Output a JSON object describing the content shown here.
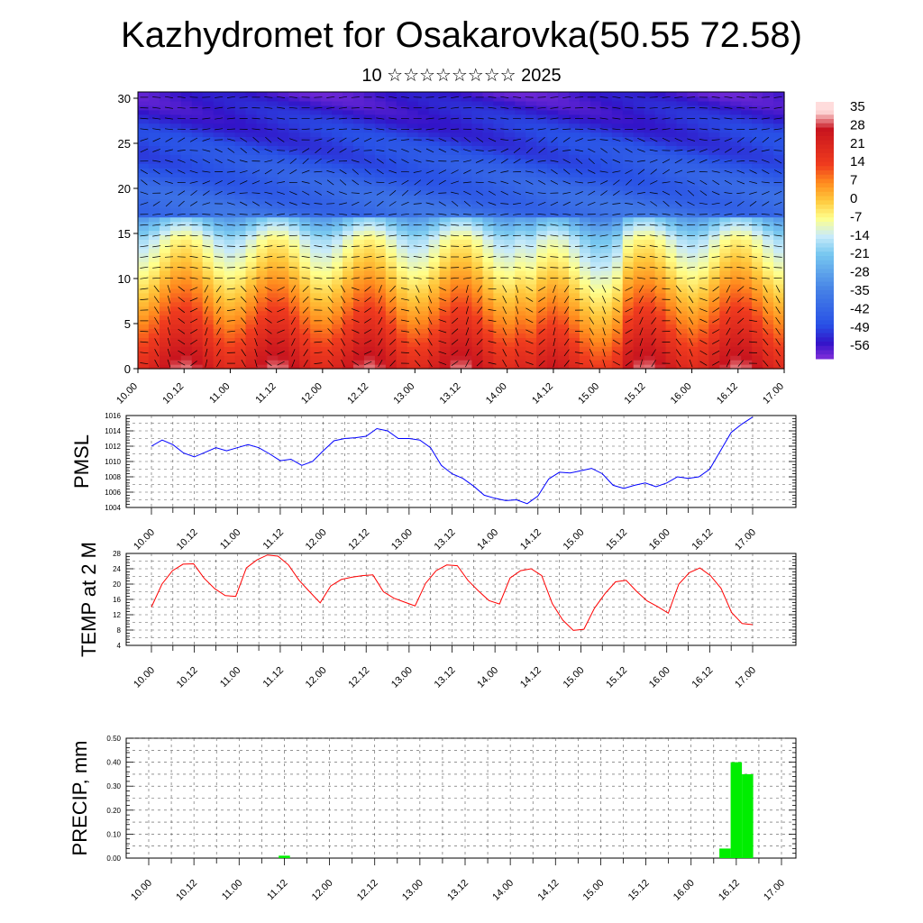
{
  "page": {
    "title": "Kazhydromet for Osakarovka(50.55 72.58)",
    "subtitle": "10 ☆☆☆☆☆☆☆☆ 2025"
  },
  "chart_data": [
    {
      "type": "heatmap",
      "name": "upper-air-section",
      "x_ticks": [
        "10.00",
        "10.12",
        "11.00",
        "11.12",
        "12.00",
        "12.12",
        "13.00",
        "13.12",
        "14.00",
        "14.12",
        "15.00",
        "15.12",
        "16.00",
        "16.12",
        "17.00"
      ],
      "y_ticks": [
        0,
        5,
        10,
        15,
        20,
        25,
        30
      ],
      "ylim": [
        0,
        30.7
      ],
      "colorbar_labels": [
        "35",
        "28",
        "21",
        "14",
        "7",
        "0",
        "-7",
        "-14",
        "-21",
        "-28",
        "-35",
        "-42",
        "-49",
        "-56"
      ],
      "colors": {
        "hot": "#c8141e",
        "warm": "#ff8c1e",
        "neutral": "#ffff8c",
        "cool": "#78c8f0",
        "cold": "#2850e6",
        "coldest": "#3214c8"
      },
      "vectors": "wind-barbs"
    },
    {
      "type": "line",
      "name": "pmsl",
      "ylabel": "PMSL",
      "x_ticks": [
        "10.00",
        "10.12",
        "11.00",
        "11.12",
        "12.00",
        "12.12",
        "13.00",
        "13.12",
        "14.00",
        "14.12",
        "15.00",
        "15.12",
        "16.00",
        "16.12",
        "17.00"
      ],
      "ylim": [
        1004,
        1016
      ],
      "y_ticks": [
        1004,
        1006,
        1008,
        1010,
        1012,
        1014,
        1016
      ],
      "color": "#0000ff",
      "values": [
        1012.0,
        1012.8,
        1012.2,
        1011.1,
        1010.6,
        1011.2,
        1011.8,
        1011.4,
        1011.8,
        1012.2,
        1011.8,
        1011.0,
        1010.1,
        1010.3,
        1009.5,
        1010.0,
        1011.4,
        1012.7,
        1013.0,
        1013.1,
        1013.3,
        1014.3,
        1014.0,
        1013.0,
        1013.0,
        1012.8,
        1011.8,
        1009.5,
        1008.4,
        1007.8,
        1006.8,
        1005.6,
        1005.2,
        1004.9,
        1005.0,
        1004.5,
        1005.5,
        1007.7,
        1008.6,
        1008.5,
        1008.8,
        1009.1,
        1008.4,
        1006.9,
        1006.5,
        1006.9,
        1007.2,
        1006.7,
        1007.2,
        1008.0,
        1007.8,
        1008.0,
        1009.0,
        1011.4,
        1013.8,
        1014.9,
        1015.8
      ]
    },
    {
      "type": "line",
      "name": "temp-2m",
      "ylabel": "TEMP at 2 M",
      "x_ticks": [
        "10.00",
        "10.12",
        "11.00",
        "11.12",
        "12.00",
        "12.12",
        "13.00",
        "13.12",
        "14.00",
        "14.12",
        "15.00",
        "15.12",
        "16.00",
        "16.12",
        "17.00"
      ],
      "ylim": [
        4,
        28
      ],
      "y_ticks": [
        4,
        8,
        12,
        16,
        20,
        24,
        28
      ],
      "color": "#ff0000",
      "values": [
        14.0,
        20.0,
        23.5,
        25.2,
        25.3,
        21.5,
        18.8,
        17.0,
        16.8,
        24.2,
        26.3,
        27.6,
        27.3,
        25.0,
        21.0,
        18.0,
        15.1,
        19.5,
        21.2,
        21.8,
        22.2,
        22.4,
        18.0,
        16.3,
        15.3,
        14.3,
        20.2,
        23.5,
        25.0,
        24.8,
        21.0,
        18.2,
        15.7,
        14.8,
        21.6,
        23.5,
        24.0,
        22.2,
        14.9,
        10.6,
        7.9,
        8.2,
        13.7,
        17.5,
        20.6,
        21.0,
        18.1,
        15.6,
        14.1,
        12.4,
        20.0,
        23.0,
        24.2,
        22.2,
        18.9,
        12.6,
        9.7,
        9.4
      ]
    },
    {
      "type": "bar",
      "name": "precip",
      "ylabel": "PRECIP, mm",
      "x_ticks": [
        "10.00",
        "10.12",
        "11.00",
        "11.12",
        "12.00",
        "12.12",
        "13.00",
        "13.12",
        "14.00",
        "14.12",
        "15.00",
        "15.12",
        "16.00",
        "16.12",
        "17.00"
      ],
      "ylim": [
        0,
        0.5
      ],
      "y_ticks": [
        "0.00",
        "0.10",
        "0.20",
        "0.30",
        "0.40",
        "0.50"
      ],
      "color": "#00ee00",
      "bars": [
        {
          "x_hours": 36,
          "value": 0.01
        },
        {
          "x_hours": 153,
          "value": 0.04
        },
        {
          "x_hours": 156,
          "value": 0.4
        },
        {
          "x_hours": 159,
          "value": 0.35
        }
      ]
    }
  ]
}
